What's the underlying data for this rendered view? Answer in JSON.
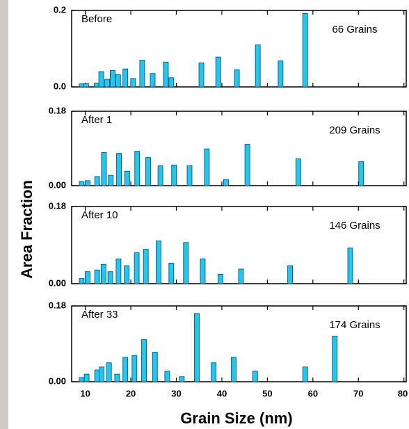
{
  "chart_data": [
    {
      "type": "bar",
      "label": "Before",
      "note": "66 Grains",
      "color": "#1ec8f0",
      "x": [
        9.2,
        10.2,
        12.5,
        13.5,
        14.8,
        16,
        17.2,
        18.8,
        20.5,
        22.5,
        24.8,
        27.7,
        28.9,
        35.5,
        39.2,
        43.3,
        47.9,
        52.9,
        58.3
      ],
      "values": [
        0.008,
        0.009,
        0.01,
        0.04,
        0.02,
        0.043,
        0.032,
        0.047,
        0.022,
        0.07,
        0.035,
        0.065,
        0.024,
        0.063,
        0.078,
        0.045,
        0.11,
        0.068,
        0.192
      ],
      "xlim": [
        7,
        80.5
      ],
      "xticks": [
        10,
        20,
        30,
        40,
        50,
        60,
        70,
        80
      ],
      "ylim": [
        0,
        0.2
      ],
      "yticks": [
        {
          "value": 0,
          "label": "0.0"
        },
        0.2
      ],
      "ylabel": "Area Fraction"
    },
    {
      "type": "bar",
      "label": "After 1",
      "note": "209 Grains",
      "color": "#1ec8f0",
      "x": [
        9.2,
        10.5,
        12.6,
        14.1,
        15.6,
        17.4,
        19.2,
        21.4,
        23.8,
        26.5,
        29.5,
        32.9,
        36.7,
        40.9,
        45.6,
        56.8,
        70.6
      ],
      "values": [
        0.01,
        0.012,
        0.022,
        0.08,
        0.025,
        0.078,
        0.035,
        0.083,
        0.068,
        0.048,
        0.05,
        0.048,
        0.089,
        0.015,
        0.1,
        0.065,
        0.058
      ],
      "xlim": [
        7,
        80.5
      ],
      "xticks": [
        10,
        20,
        30,
        40,
        50,
        60,
        70,
        80
      ],
      "ylim": [
        0,
        0.18
      ],
      "yticks": [
        {
          "value": 0,
          "label": "0.00"
        },
        0.18
      ]
    },
    {
      "type": "bar",
      "label": "After 10",
      "note": "146 Grains",
      "color": "#1ec8f0",
      "x": [
        9.2,
        10.5,
        12.6,
        14,
        15.5,
        17.3,
        19.1,
        21.3,
        23.3,
        26.1,
        28.9,
        32.1,
        35.8,
        39.7,
        44.2,
        55,
        68.2
      ],
      "values": [
        0.012,
        0.028,
        0.032,
        0.045,
        0.028,
        0.058,
        0.042,
        0.072,
        0.08,
        0.1,
        0.048,
        0.096,
        0.058,
        0.022,
        0.034,
        0.042,
        0.083
      ],
      "xlim": [
        7,
        80.5
      ],
      "xticks": [
        10,
        20,
        30,
        40,
        50,
        60,
        70,
        80
      ],
      "ylim": [
        0,
        0.18
      ],
      "yticks": [
        {
          "value": 0,
          "label": "0.00"
        },
        0.18
      ]
    },
    {
      "type": "bar",
      "label": "After 33",
      "note": "174 Grains",
      "color": "#1ec8f0",
      "x": [
        9.2,
        10.3,
        12.6,
        13.6,
        15.2,
        17,
        18.8,
        20.8,
        22.9,
        25.3,
        28,
        31.2,
        34.5,
        38.2,
        42.6,
        47.3,
        58.3,
        64.8
      ],
      "values": [
        0.01,
        0.018,
        0.028,
        0.035,
        0.045,
        0.018,
        0.058,
        0.062,
        0.1,
        0.07,
        0.025,
        0.012,
        0.162,
        0.045,
        0.058,
        0.025,
        0.035,
        0.108
      ],
      "xlim": [
        7,
        80.5
      ],
      "xticks": [
        10,
        20,
        30,
        40,
        50,
        60,
        70,
        80
      ],
      "ylim": [
        0,
        0.18
      ],
      "yticks": [
        {
          "value": 0,
          "label": "0.00"
        },
        0.18
      ],
      "xlabel": "Grain Size (nm)"
    }
  ]
}
